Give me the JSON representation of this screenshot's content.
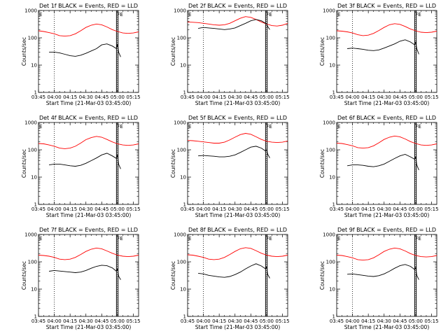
{
  "figure": {
    "panel_titles": [
      "Det 1f BLACK = Events, RED = LLD",
      "Det 2f BLACK = Events, RED = LLD",
      "Det 3f BLACK = Events, RED = LLD",
      "Det 4f BLACK = Events, RED = LLD",
      "Det 5f BLACK = Events, RED = LLD",
      "Det 6f BLACK = Events, RED = LLD",
      "Det 7f BLACK = Events, RED = LLD",
      "Det 8f BLACK = Events, RED = LLD",
      "Det 9f BLACK = Events, RED = LLD"
    ],
    "xlabel": "Start Time (21-Mar-03 03:45:00)",
    "ylabel": "Counts/sec",
    "x_tick_labels": [
      "03:45",
      "04:00",
      "04:15",
      "04:30",
      "04:45",
      "05:00",
      "05:15"
    ],
    "y_tick_labels": [
      "1",
      "10",
      "100",
      "1000"
    ],
    "marker_E": "E",
    "marker_FE": "FE",
    "colors": {
      "events": "#000000",
      "lld": "#ff0000"
    }
  },
  "chart_data": {
    "type": "line",
    "layout": "3x3 grid",
    "x_unit": "minutes after 21-Mar-03 03:45:00",
    "xlim": [
      0,
      95
    ],
    "x_ticks": [
      0,
      15,
      30,
      45,
      60,
      75,
      90
    ],
    "y_scale": "log",
    "ylim": [
      1,
      1000
    ],
    "y_ticks": [
      1,
      10,
      100,
      1000
    ],
    "dotted_vlines_x": [
      15,
      75
    ],
    "solid_vlines_x": [
      74,
      75.5
    ],
    "grid": false,
    "panels": [
      {
        "title": "Det 1f BLACK = Events, RED = LLD",
        "series": [
          {
            "name": "LLD",
            "color": "red",
            "x": [
              0,
              5,
              10,
              15,
              20,
              25,
              30,
              35,
              40,
              45,
              50,
              55,
              60,
              65,
              70,
              75,
              80,
              85,
              90,
              95
            ],
            "y": [
              180,
              170,
              155,
              140,
              120,
              115,
              120,
              140,
              180,
              240,
              290,
              320,
              300,
              250,
              200,
              170,
              150,
              145,
              150,
              165
            ]
          },
          {
            "name": "Events",
            "color": "black",
            "x": [
              10,
              15,
              20,
              25,
              30,
              35,
              40,
              45,
              50,
              55,
              60,
              65,
              70,
              74,
              75,
              76,
              78
            ],
            "y": [
              30,
              30,
              28,
              25,
              22,
              21,
              23,
              27,
              33,
              40,
              55,
              60,
              50,
              40,
              60,
              30,
              20
            ]
          }
        ]
      },
      {
        "title": "Det 2f BLACK = Events, RED = LLD",
        "series": [
          {
            "name": "LLD",
            "color": "red",
            "x": [
              0,
              5,
              10,
              15,
              20,
              25,
              30,
              35,
              40,
              45,
              50,
              55,
              60,
              65,
              70,
              75,
              80,
              85,
              90,
              95
            ],
            "y": [
              380,
              370,
              360,
              340,
              320,
              300,
              290,
              300,
              340,
              420,
              520,
              600,
              560,
              470,
              380,
              320,
              280,
              270,
              290,
              340
            ]
          },
          {
            "name": "Events",
            "color": "black",
            "x": [
              10,
              15,
              20,
              25,
              30,
              35,
              40,
              45,
              50,
              55,
              60,
              65,
              70,
              74,
              75,
              76,
              78
            ],
            "y": [
              220,
              240,
              230,
              220,
              210,
              200,
              210,
              230,
              280,
              340,
              420,
              470,
              420,
              340,
              320,
              260,
              200
            ]
          }
        ]
      },
      {
        "title": "Det 3f BLACK = Events, RED = LLD",
        "series": [
          {
            "name": "LLD",
            "color": "red",
            "x": [
              0,
              5,
              10,
              15,
              20,
              25,
              30,
              35,
              40,
              45,
              50,
              55,
              60,
              65,
              70,
              75,
              80,
              85,
              90,
              95
            ],
            "y": [
              180,
              175,
              165,
              150,
              130,
              120,
              125,
              145,
              185,
              240,
              300,
              330,
              310,
              260,
              210,
              180,
              160,
              155,
              160,
              175
            ]
          },
          {
            "name": "Events",
            "color": "black",
            "x": [
              10,
              15,
              20,
              25,
              30,
              35,
              40,
              45,
              50,
              55,
              60,
              65,
              70,
              74,
              75,
              76,
              78
            ],
            "y": [
              40,
              42,
              40,
              38,
              35,
              34,
              36,
              42,
              50,
              60,
              75,
              85,
              70,
              55,
              70,
              40,
              25
            ]
          }
        ]
      },
      {
        "title": "Det 4f BLACK = Events, RED = LLD",
        "series": [
          {
            "name": "LLD",
            "color": "red",
            "x": [
              0,
              5,
              10,
              15,
              20,
              25,
              30,
              35,
              40,
              45,
              50,
              55,
              60,
              65,
              70,
              75,
              80,
              85,
              90,
              95
            ],
            "y": [
              170,
              165,
              150,
              135,
              115,
              110,
              115,
              135,
              175,
              235,
              280,
              310,
              290,
              240,
              195,
              165,
              150,
              145,
              150,
              165
            ]
          },
          {
            "name": "Events",
            "color": "black",
            "x": [
              10,
              15,
              20,
              25,
              30,
              35,
              40,
              45,
              50,
              55,
              60,
              65,
              70,
              74,
              75,
              76,
              78
            ],
            "y": [
              28,
              30,
              30,
              28,
              26,
              25,
              27,
              32,
              40,
              50,
              65,
              75,
              60,
              48,
              65,
              30,
              20
            ]
          }
        ]
      },
      {
        "title": "Det 5f BLACK = Events, RED = LLD",
        "series": [
          {
            "name": "LLD",
            "color": "red",
            "x": [
              0,
              5,
              10,
              15,
              20,
              25,
              30,
              35,
              40,
              45,
              50,
              55,
              60,
              65,
              70,
              75,
              80,
              85,
              90,
              95
            ],
            "y": [
              220,
              215,
              205,
              195,
              185,
              175,
              175,
              190,
              230,
              290,
              360,
              400,
              370,
              300,
              240,
              205,
              190,
              185,
              190,
              210
            ]
          },
          {
            "name": "Events",
            "color": "black",
            "x": [
              10,
              15,
              20,
              25,
              30,
              35,
              40,
              45,
              50,
              55,
              60,
              65,
              70,
              74,
              75,
              76,
              78
            ],
            "y": [
              60,
              62,
              60,
              58,
              55,
              55,
              58,
              65,
              80,
              100,
              125,
              135,
              115,
              90,
              100,
              70,
              50
            ]
          }
        ]
      },
      {
        "title": "Det 6f BLACK = Events, RED = LLD",
        "series": [
          {
            "name": "LLD",
            "color": "red",
            "x": [
              0,
              5,
              10,
              15,
              20,
              25,
              30,
              35,
              40,
              45,
              50,
              55,
              60,
              65,
              70,
              75,
              80,
              85,
              90,
              95
            ],
            "y": [
              175,
              170,
              155,
              140,
              120,
              115,
              120,
              140,
              180,
              240,
              290,
              320,
              300,
              250,
              200,
              170,
              150,
              145,
              150,
              165
            ]
          },
          {
            "name": "Events",
            "color": "black",
            "x": [
              10,
              15,
              20,
              25,
              30,
              35,
              40,
              45,
              50,
              55,
              60,
              65,
              70,
              74,
              75,
              76,
              78
            ],
            "y": [
              26,
              28,
              28,
              27,
              25,
              24,
              26,
              30,
              38,
              48,
              60,
              68,
              55,
              45,
              55,
              28,
              18
            ]
          }
        ]
      },
      {
        "title": "Det 7f BLACK = Events, RED = LLD",
        "series": [
          {
            "name": "LLD",
            "color": "red",
            "x": [
              0,
              5,
              10,
              15,
              20,
              25,
              30,
              35,
              40,
              45,
              50,
              55,
              60,
              65,
              70,
              75,
              80,
              85,
              90,
              95
            ],
            "y": [
              175,
              170,
              160,
              145,
              125,
              120,
              125,
              145,
              185,
              240,
              290,
              320,
              300,
              250,
              205,
              175,
              160,
              155,
              160,
              175
            ]
          },
          {
            "name": "Events",
            "color": "black",
            "x": [
              10,
              15,
              20,
              25,
              30,
              35,
              40,
              45,
              50,
              55,
              60,
              65,
              70,
              74,
              75,
              76,
              78
            ],
            "y": [
              45,
              48,
              46,
              44,
              42,
              40,
              42,
              48,
              58,
              68,
              75,
              72,
              60,
              45,
              55,
              30,
              22
            ]
          }
        ]
      },
      {
        "title": "Det 8f BLACK = Events, RED = LLD",
        "series": [
          {
            "name": "LLD",
            "color": "red",
            "x": [
              0,
              5,
              10,
              15,
              20,
              25,
              30,
              35,
              40,
              45,
              50,
              55,
              60,
              65,
              70,
              75,
              80,
              85,
              90,
              95
            ],
            "y": [
              180,
              175,
              160,
              145,
              125,
              120,
              125,
              145,
              185,
              240,
              300,
              330,
              310,
              255,
              205,
              175,
              160,
              155,
              160,
              175
            ]
          },
          {
            "name": "Events",
            "color": "black",
            "x": [
              10,
              15,
              20,
              25,
              30,
              35,
              40,
              45,
              50,
              55,
              60,
              65,
              70,
              74,
              75,
              76,
              78
            ],
            "y": [
              38,
              36,
              32,
              30,
              28,
              27,
              29,
              34,
              42,
              55,
              70,
              85,
              70,
              55,
              65,
              35,
              25
            ]
          }
        ]
      },
      {
        "title": "Det 9f BLACK = Events, RED = LLD",
        "series": [
          {
            "name": "LLD",
            "color": "red",
            "x": [
              0,
              5,
              10,
              15,
              20,
              25,
              30,
              35,
              40,
              45,
              50,
              55,
              60,
              65,
              70,
              75,
              80,
              85,
              90,
              95
            ],
            "y": [
              175,
              170,
              155,
              140,
              120,
              115,
              120,
              140,
              180,
              240,
              290,
              320,
              300,
              250,
              200,
              170,
              155,
              150,
              155,
              170
            ]
          },
          {
            "name": "Events",
            "color": "black",
            "x": [
              10,
              15,
              20,
              25,
              30,
              35,
              40,
              45,
              50,
              55,
              60,
              65,
              70,
              74,
              75,
              76,
              78
            ],
            "y": [
              35,
              36,
              34,
              32,
              30,
              29,
              31,
              36,
              45,
              58,
              72,
              80,
              68,
              52,
              62,
              32,
              22
            ]
          }
        ]
      }
    ]
  }
}
